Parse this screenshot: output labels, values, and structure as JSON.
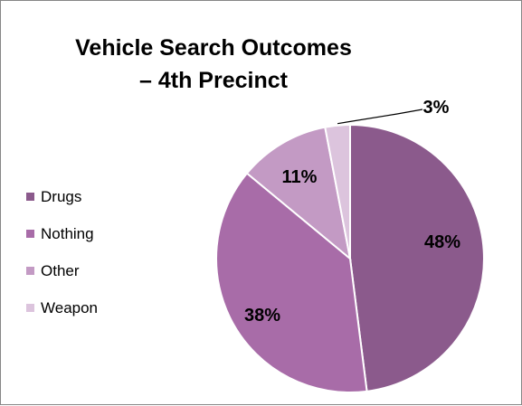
{
  "chart": {
    "title_line1": "Vehicle Search Outcomes",
    "title_line2": "– 4th Precinct"
  },
  "legend": {
    "items": [
      {
        "label": "Drugs",
        "color": "#8b5a8c"
      },
      {
        "label": "Nothing",
        "color": "#a86ca8"
      },
      {
        "label": "Other",
        "color": "#c39ac4"
      },
      {
        "label": "Weapon",
        "color": "#dcc4dd"
      }
    ]
  },
  "chart_data": {
    "type": "pie",
    "title": "Vehicle Search Outcomes – 4th Precinct",
    "categories": [
      "Drugs",
      "Nothing",
      "Other",
      "Weapon"
    ],
    "values": [
      48,
      38,
      11,
      3
    ],
    "labels": [
      "48%",
      "38%",
      "11%",
      "3%"
    ],
    "colors": [
      "#8b5a8c",
      "#a86ca8",
      "#c39ac4",
      "#dcc4dd"
    ],
    "legend_position": "left"
  }
}
